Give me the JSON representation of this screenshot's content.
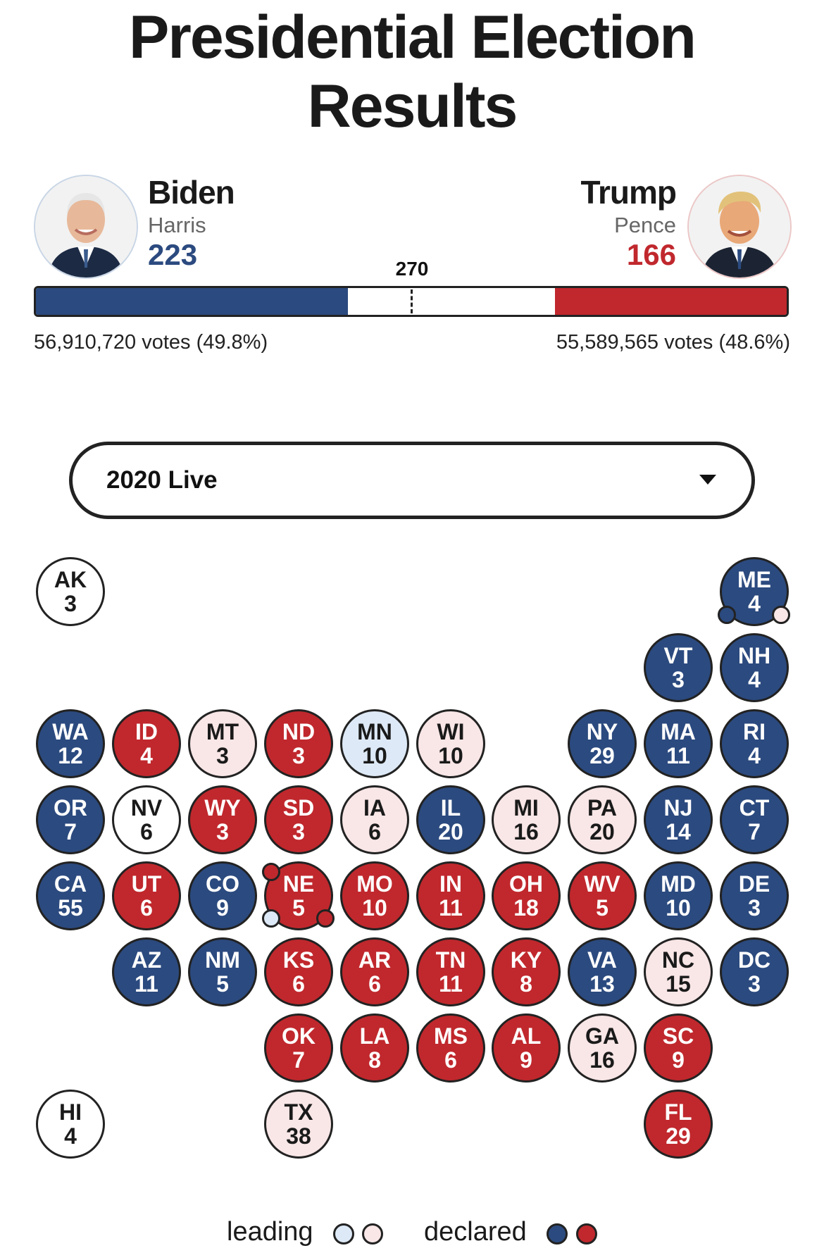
{
  "title": {
    "line1": "Presidential Election",
    "line2": "Results"
  },
  "threshold": "270",
  "dem": {
    "name": "Biden",
    "running_mate": "Harris",
    "electoral_votes": "223",
    "votes": "56,910,720 votes (49.8%)",
    "share": 0.416,
    "color": "#2b4a7f"
  },
  "rep": {
    "name": "Trump",
    "running_mate": "Pence",
    "electoral_votes": "166",
    "votes": "55,589,565 votes (48.6%)",
    "share": 0.309,
    "color": "#c0282d"
  },
  "selector": {
    "value": "2020 Live",
    "icon": "caret-down-icon"
  },
  "states": [
    {
      "ab": "AK",
      "ev": "3",
      "status": "und"
    },
    {
      "ab": "ME",
      "ev": "4",
      "status": "dem-d"
    },
    {
      "ab": "VT",
      "ev": "3",
      "status": "dem-d"
    },
    {
      "ab": "NH",
      "ev": "4",
      "status": "dem-d"
    },
    {
      "ab": "WA",
      "ev": "12",
      "status": "dem-d"
    },
    {
      "ab": "ID",
      "ev": "4",
      "status": "rep-d"
    },
    {
      "ab": "MT",
      "ev": "3",
      "status": "rep-l"
    },
    {
      "ab": "ND",
      "ev": "3",
      "status": "rep-d"
    },
    {
      "ab": "MN",
      "ev": "10",
      "status": "dem-l"
    },
    {
      "ab": "WI",
      "ev": "10",
      "status": "rep-l"
    },
    {
      "ab": "NY",
      "ev": "29",
      "status": "dem-d"
    },
    {
      "ab": "MA",
      "ev": "11",
      "status": "dem-d"
    },
    {
      "ab": "RI",
      "ev": "4",
      "status": "dem-d"
    },
    {
      "ab": "OR",
      "ev": "7",
      "status": "dem-d"
    },
    {
      "ab": "NV",
      "ev": "6",
      "status": "und"
    },
    {
      "ab": "WY",
      "ev": "3",
      "status": "rep-d"
    },
    {
      "ab": "SD",
      "ev": "3",
      "status": "rep-d"
    },
    {
      "ab": "IA",
      "ev": "6",
      "status": "rep-l"
    },
    {
      "ab": "IL",
      "ev": "20",
      "status": "dem-d"
    },
    {
      "ab": "MI",
      "ev": "16",
      "status": "rep-l"
    },
    {
      "ab": "PA",
      "ev": "20",
      "status": "rep-l"
    },
    {
      "ab": "NJ",
      "ev": "14",
      "status": "dem-d"
    },
    {
      "ab": "CT",
      "ev": "7",
      "status": "dem-d"
    },
    {
      "ab": "CA",
      "ev": "55",
      "status": "dem-d"
    },
    {
      "ab": "UT",
      "ev": "6",
      "status": "rep-d"
    },
    {
      "ab": "CO",
      "ev": "9",
      "status": "dem-d"
    },
    {
      "ab": "NE",
      "ev": "5",
      "status": "rep-d"
    },
    {
      "ab": "MO",
      "ev": "10",
      "status": "rep-d"
    },
    {
      "ab": "IN",
      "ev": "11",
      "status": "rep-d"
    },
    {
      "ab": "OH",
      "ev": "18",
      "status": "rep-d"
    },
    {
      "ab": "WV",
      "ev": "5",
      "status": "rep-d"
    },
    {
      "ab": "MD",
      "ev": "10",
      "status": "dem-d"
    },
    {
      "ab": "DE",
      "ev": "3",
      "status": "dem-d"
    },
    {
      "ab": "AZ",
      "ev": "11",
      "status": "dem-d"
    },
    {
      "ab": "NM",
      "ev": "5",
      "status": "dem-d"
    },
    {
      "ab": "KS",
      "ev": "6",
      "status": "rep-d"
    },
    {
      "ab": "AR",
      "ev": "6",
      "status": "rep-d"
    },
    {
      "ab": "TN",
      "ev": "11",
      "status": "rep-d"
    },
    {
      "ab": "KY",
      "ev": "8",
      "status": "rep-d"
    },
    {
      "ab": "VA",
      "ev": "13",
      "status": "dem-d"
    },
    {
      "ab": "NC",
      "ev": "15",
      "status": "rep-l"
    },
    {
      "ab": "DC",
      "ev": "3",
      "status": "dem-d"
    },
    {
      "ab": "OK",
      "ev": "7",
      "status": "rep-d"
    },
    {
      "ab": "LA",
      "ev": "8",
      "status": "rep-d"
    },
    {
      "ab": "MS",
      "ev": "6",
      "status": "rep-d"
    },
    {
      "ab": "AL",
      "ev": "9",
      "status": "rep-d"
    },
    {
      "ab": "GA",
      "ev": "16",
      "status": "rep-l"
    },
    {
      "ab": "SC",
      "ev": "9",
      "status": "rep-d"
    },
    {
      "ab": "HI",
      "ev": "4",
      "status": "und"
    },
    {
      "ab": "TX",
      "ev": "38",
      "status": "rep-l"
    },
    {
      "ab": "FL",
      "ev": "29",
      "status": "rep-d"
    }
  ],
  "legend": {
    "leading_label": "leading",
    "declared_label": "declared",
    "leading_colors": [
      "#dde9f6",
      "#f9e6e6"
    ],
    "declared_colors": [
      "#2b4a7f",
      "#c0282d"
    ]
  }
}
